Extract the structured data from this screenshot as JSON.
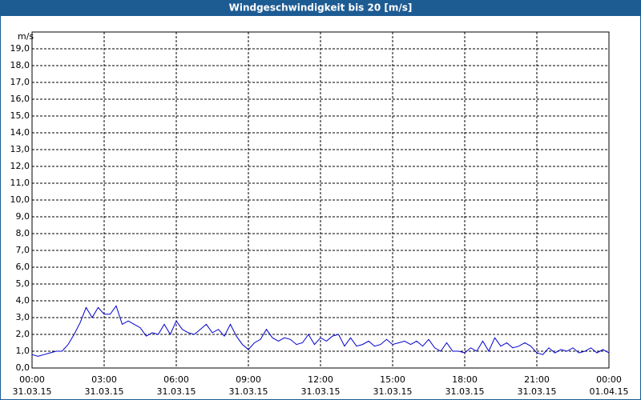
{
  "chart_data": {
    "type": "line",
    "title": "Windgeschwindigkeit bis 20 [m/s]",
    "y_label": "m/s",
    "xlim": [
      0,
      24
    ],
    "ylim": [
      0,
      20
    ],
    "grid": true,
    "xticks": [
      {
        "value": 0,
        "label": "00:00"
      },
      {
        "value": 3,
        "label": "03:00"
      },
      {
        "value": 6,
        "label": "06:00"
      },
      {
        "value": 9,
        "label": "09:00"
      },
      {
        "value": 12,
        "label": "12:00"
      },
      {
        "value": 15,
        "label": "15:00"
      },
      {
        "value": 18,
        "label": "18:00"
      },
      {
        "value": 21,
        "label": "21:00"
      },
      {
        "value": 24,
        "label": "00:00"
      }
    ],
    "xtick_dates": [
      "31.03.15",
      "31.03.15",
      "31.03.15",
      "31.03.15",
      "31.03.15",
      "31.03.15",
      "31.03.15",
      "31.03.15",
      "01.04.15"
    ],
    "yticks": [
      {
        "value": 0,
        "label": "0,0"
      },
      {
        "value": 1,
        "label": "1,0"
      },
      {
        "value": 2,
        "label": "2,0"
      },
      {
        "value": 3,
        "label": "3,0"
      },
      {
        "value": 4,
        "label": "4,0"
      },
      {
        "value": 5,
        "label": "5,0"
      },
      {
        "value": 6,
        "label": "6,0"
      },
      {
        "value": 7,
        "label": "7,0"
      },
      {
        "value": 8,
        "label": "8,0"
      },
      {
        "value": 9,
        "label": "9,0"
      },
      {
        "value": 10,
        "label": "10,0"
      },
      {
        "value": 11,
        "label": "11,0"
      },
      {
        "value": 12,
        "label": "12,0"
      },
      {
        "value": 13,
        "label": "13,0"
      },
      {
        "value": 14,
        "label": "14,0"
      },
      {
        "value": 15,
        "label": "15,0"
      },
      {
        "value": 16,
        "label": "16,0"
      },
      {
        "value": 17,
        "label": "17,0"
      },
      {
        "value": 18,
        "label": "18,0"
      },
      {
        "value": 19,
        "label": "19,0"
      }
    ],
    "x": [
      0,
      0.25,
      0.5,
      0.75,
      1,
      1.25,
      1.5,
      1.75,
      2,
      2.25,
      2.5,
      2.75,
      3,
      3.25,
      3.5,
      3.75,
      4,
      4.25,
      4.5,
      4.75,
      5,
      5.25,
      5.5,
      5.75,
      6,
      6.25,
      6.5,
      6.75,
      7,
      7.25,
      7.5,
      7.75,
      8,
      8.25,
      8.5,
      8.75,
      9,
      9.25,
      9.5,
      9.75,
      10,
      10.25,
      10.5,
      10.75,
      11,
      11.25,
      11.5,
      11.75,
      12,
      12.25,
      12.5,
      12.75,
      13,
      13.25,
      13.5,
      13.75,
      14,
      14.25,
      14.5,
      14.75,
      15,
      15.25,
      15.5,
      15.75,
      16,
      16.25,
      16.5,
      16.75,
      17,
      17.25,
      17.5,
      17.75,
      18,
      18.25,
      18.5,
      18.75,
      19,
      19.25,
      19.5,
      19.75,
      20,
      20.25,
      20.5,
      20.75,
      21,
      21.25,
      21.5,
      21.75,
      22,
      22.25,
      22.5,
      22.75,
      23,
      23.25,
      23.5,
      23.75,
      24
    ],
    "series": [
      {
        "name": "Windgeschwindigkeit",
        "color": "#0000cc",
        "values": [
          0.8,
          0.7,
          0.8,
          0.9,
          1.0,
          1.0,
          1.4,
          2.0,
          2.7,
          3.6,
          3.0,
          3.6,
          3.2,
          3.2,
          3.7,
          2.6,
          2.8,
          2.6,
          2.4,
          1.9,
          2.1,
          2.0,
          2.6,
          2.0,
          2.8,
          2.3,
          2.1,
          2.0,
          2.3,
          2.6,
          2.1,
          2.3,
          1.9,
          2.6,
          1.9,
          1.4,
          1.1,
          1.5,
          1.7,
          2.3,
          1.8,
          1.6,
          1.8,
          1.7,
          1.4,
          1.5,
          2.0,
          1.4,
          1.8,
          1.6,
          1.9,
          2.0,
          1.3,
          1.8,
          1.3,
          1.4,
          1.6,
          1.3,
          1.4,
          1.7,
          1.4,
          1.5,
          1.6,
          1.4,
          1.6,
          1.3,
          1.7,
          1.2,
          1.0,
          1.5,
          1.0,
          1.0,
          0.9,
          1.2,
          1.0,
          1.6,
          1.0,
          1.8,
          1.3,
          1.5,
          1.2,
          1.3,
          1.5,
          1.3,
          0.9,
          0.8,
          1.2,
          0.9,
          1.1,
          1.0,
          1.2,
          0.9,
          1.0,
          1.2,
          0.9,
          1.1,
          0.9
        ]
      }
    ]
  }
}
